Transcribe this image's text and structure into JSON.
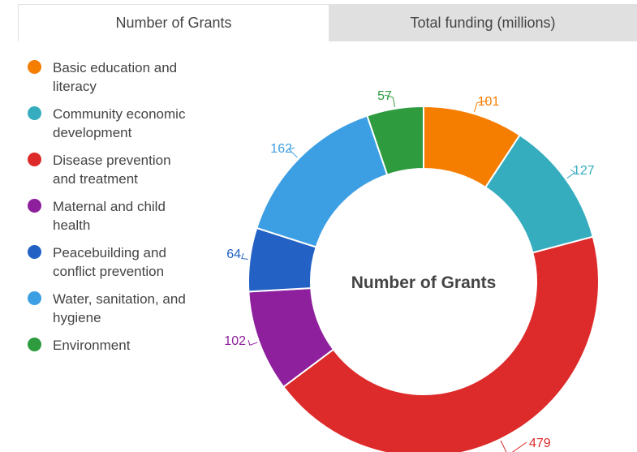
{
  "tabs": [
    {
      "label": "Number of Grants",
      "active": true
    },
    {
      "label": "Total funding (millions)",
      "active": false
    }
  ],
  "chart_data": {
    "type": "pie",
    "variant": "donut",
    "center_label": "Number of Grants",
    "legend_placement": "left",
    "categories": [
      "Basic education and literacy",
      "Community economic development",
      "Disease prevention and treatment",
      "Maternal and child health",
      "Peacebuilding and conflict prevention",
      "Water, sanitation, and hygiene",
      "Environment"
    ],
    "legend_lines": [
      "Basic education and\nliteracy",
      "Community economic\ndevelopment",
      "Disease prevention\nand treatment",
      "Maternal and child\nhealth",
      "Peacebuilding and\nconflict prevention",
      "Water, sanitation, and\nhygiene",
      "Environment"
    ],
    "values": [
      101,
      127,
      479,
      102,
      64,
      162,
      57
    ],
    "data_labels": [
      "101",
      "127",
      "479",
      "102",
      "64",
      "162",
      "57"
    ],
    "colors": [
      "#f57d00",
      "#36adbe",
      "#dd2a2a",
      "#8e1f9d",
      "#2361c4",
      "#3d9fe3",
      "#2d9b3e"
    ],
    "label_colors": [
      "#f57d00",
      "#36adbe",
      "#dd2a2a",
      "#8e1f9d",
      "#2361c4",
      "#3d9fe3",
      "#2d9b3e"
    ]
  }
}
